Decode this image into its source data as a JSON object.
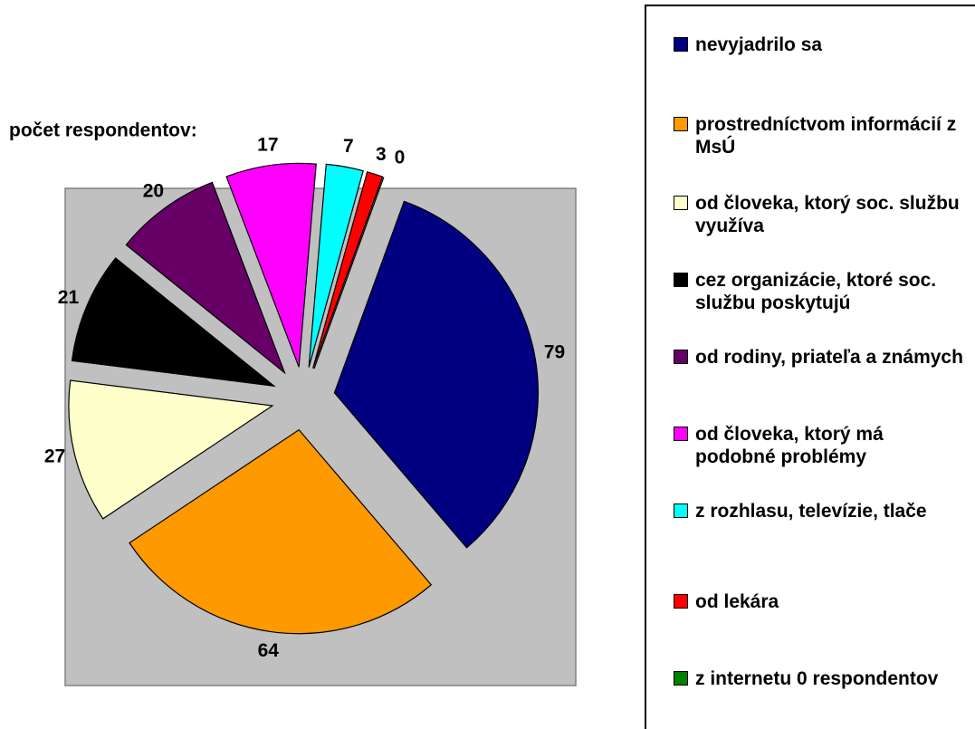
{
  "chart_data": {
    "type": "pie",
    "title": "počet respondentov:",
    "categories": [
      "nevyjadrilo sa",
      "prostredníctvom informácií z MsÚ",
      "od človeka, ktorý soc. službu využíva",
      "cez organizácie, ktoré soc. službu poskytujú",
      "od rodiny, priateľa a známych",
      "od človeka, ktorý má podobné problémy",
      "z rozhlasu, televízie, tlače",
      "od lekára",
      "z internetu 0 respondentov"
    ],
    "values": [
      79,
      64,
      27,
      21,
      20,
      17,
      7,
      3,
      0
    ],
    "colors": [
      "#000080",
      "#FF9900",
      "#FFFFCC",
      "#000000",
      "#660066",
      "#FF00FF",
      "#00FFFF",
      "#FF0000",
      "#008000"
    ],
    "legend": "right"
  }
}
